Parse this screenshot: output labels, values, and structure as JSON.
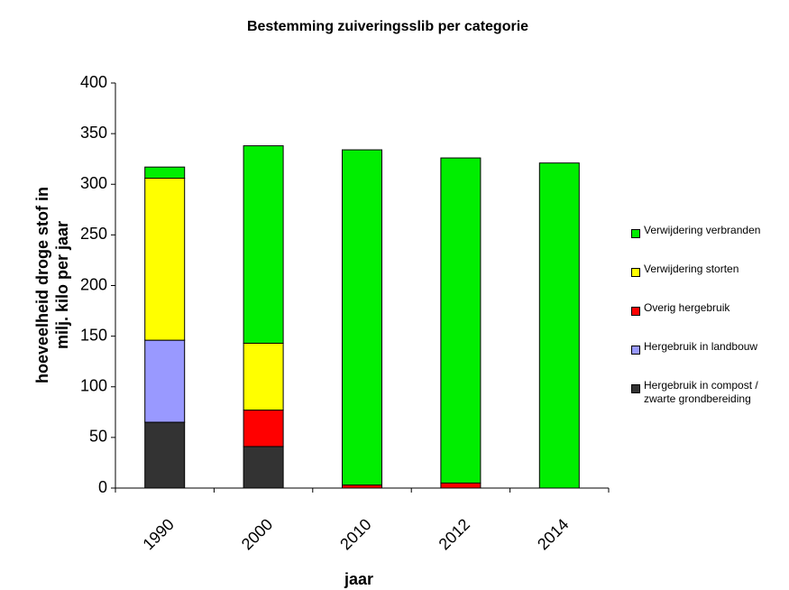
{
  "chart_data": {
    "type": "stacked_bar",
    "title": "Bestemming zuiveringsslib per categorie",
    "x_label": "jaar",
    "y_label": "hoeveelheid droge stof in\nmilj. kilo per jaar",
    "categories": [
      "1990",
      "2000",
      "2010",
      "2012",
      "2014"
    ],
    "series": [
      {
        "name": "Hergebruik in compost /\nzwarte grondbereiding",
        "color": "#333333",
        "values": [
          65,
          41,
          0,
          0,
          0
        ]
      },
      {
        "name": "Hergebruik in landbouw",
        "color": "#9999ff",
        "values": [
          81,
          0,
          0,
          0,
          0
        ]
      },
      {
        "name": "Overig hergebruik",
        "color": "#ff0000",
        "values": [
          0,
          36,
          3,
          5,
          0
        ]
      },
      {
        "name": "Verwijdering storten",
        "color": "#ffff00",
        "values": [
          160,
          66,
          0,
          0,
          0
        ]
      },
      {
        "name": "Verwijdering verbranden",
        "color": "#00ee00",
        "values": [
          11,
          195,
          331,
          321,
          321
        ]
      }
    ],
    "ylim": [
      0,
      400
    ],
    "yticks": [
      0,
      50,
      100,
      150,
      200,
      250,
      300,
      350,
      400
    ],
    "legend": "right"
  }
}
